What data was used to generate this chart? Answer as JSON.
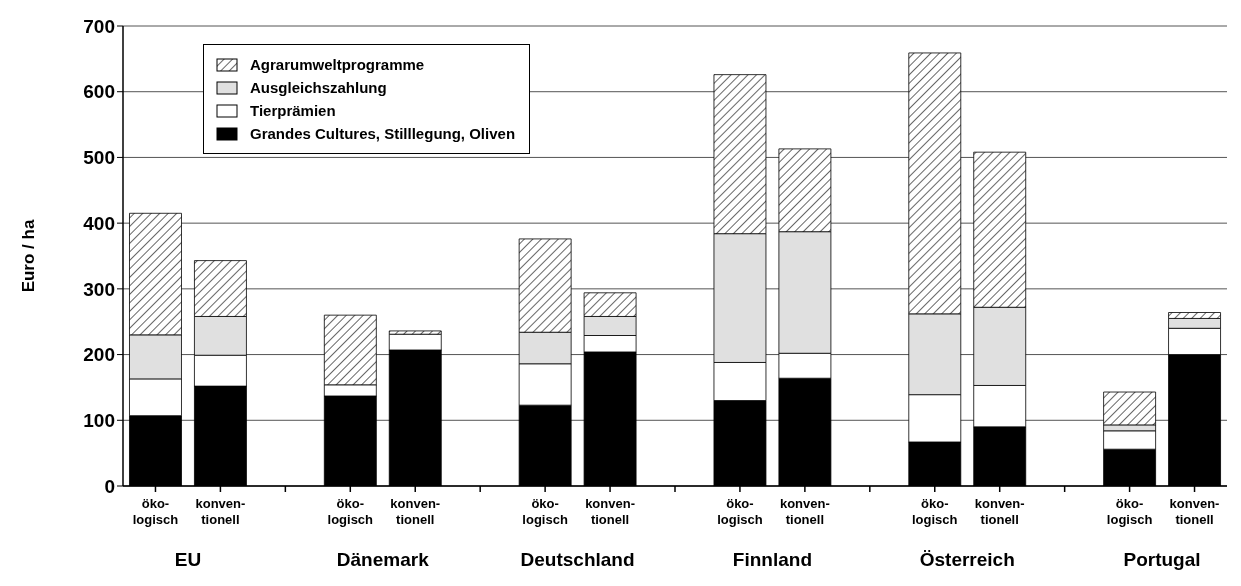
{
  "chart_data": {
    "type": "bar",
    "stacked": true,
    "ylabel": "Euro / ha",
    "categories": [
      "öko-\nlogisch",
      "konven-\ntionell",
      null,
      "öko-\nlogisch",
      "konven-\ntionell",
      null,
      "öko-\nlogisch",
      "konven-\ntionell",
      null,
      "öko-\nlogisch",
      "konven-\ntionell",
      null,
      "öko-\nlogisch",
      "konven-\ntionell",
      null,
      "öko-\nlogisch",
      "konven-\ntionell"
    ],
    "annotations": [
      "EU",
      "Dänemark",
      "Deutschland",
      "Finnland",
      "Österreich",
      "Portugal"
    ],
    "series": [
      {
        "name": "Grandes Cultures, Stilllegung, Oliven",
        "color": "#000000",
        "values": [
          107,
          152,
          null,
          137,
          207,
          null,
          123,
          204,
          null,
          130,
          164,
          null,
          67,
          90,
          null,
          56,
          200
        ]
      },
      {
        "name": "Tierprämien",
        "color": "#ffffff",
        "values": [
          56,
          47,
          null,
          17,
          24,
          null,
          63,
          25,
          null,
          58,
          38,
          null,
          72,
          63,
          null,
          28,
          40
        ]
      },
      {
        "name": "Ausgleichszahlung",
        "color": "#e0e0e0",
        "values": [
          67,
          59,
          null,
          null,
          null,
          null,
          48,
          29,
          null,
          196,
          185,
          null,
          123,
          119,
          null,
          9,
          15
        ]
      },
      {
        "name": "Agrarumweltprogramme",
        "color": "#000000",
        "values": [
          185,
          85,
          null,
          106,
          5,
          null,
          142,
          36,
          null,
          242,
          126,
          null,
          397,
          236,
          null,
          50,
          9
        ]
      }
    ],
    "ylim": [
      0,
      700
    ],
    "yticks": [
      0,
      100,
      200,
      300,
      400,
      500,
      600,
      700
    ],
    "grid": "y",
    "legend": "top left"
  }
}
